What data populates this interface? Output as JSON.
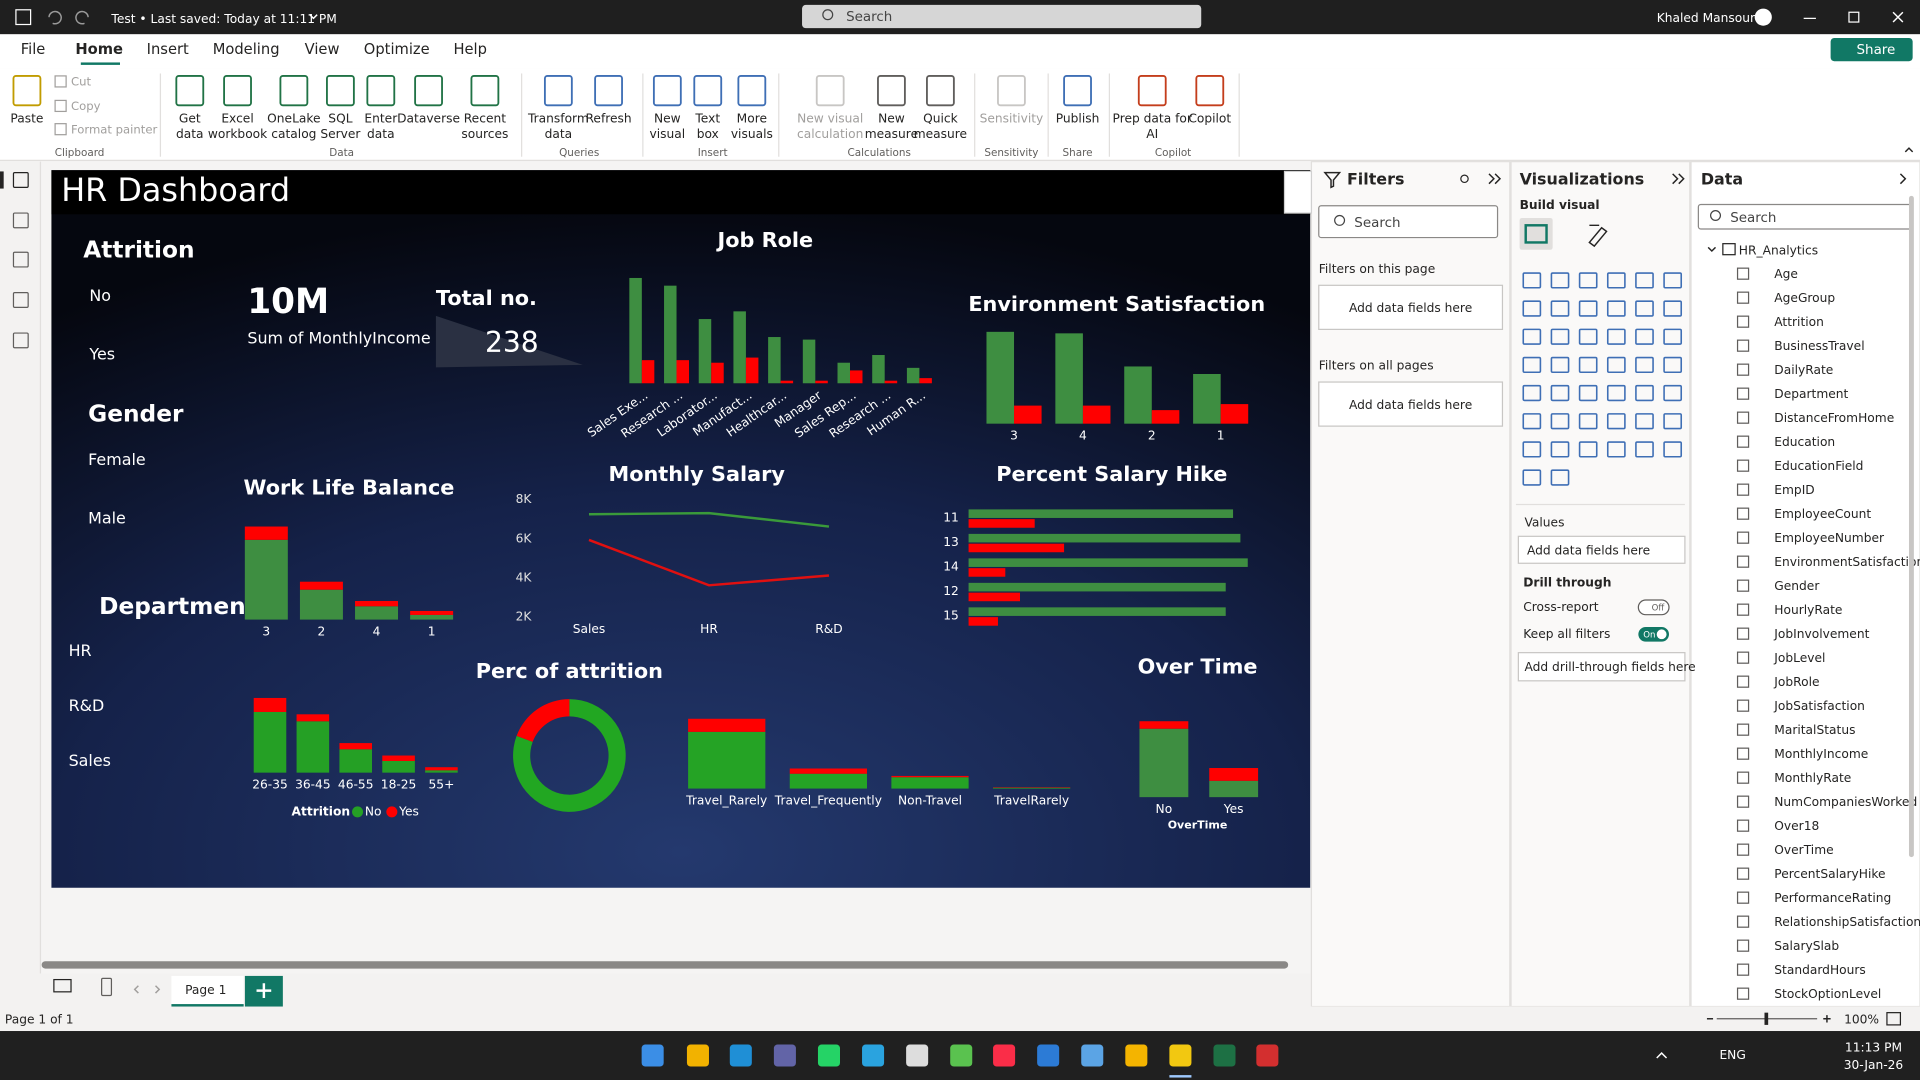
{
  "title_bar": {
    "file_title": "Test • Last saved: Today at 11:11 PM",
    "search": "Search",
    "user": "Khaled Mansour"
  },
  "menu": {
    "tabs": [
      "File",
      "Home",
      "Insert",
      "Modeling",
      "View",
      "Optimize",
      "Help"
    ],
    "share": "Share"
  },
  "ribbon": {
    "groups": [
      {
        "label": "Clipboard",
        "buttons": [
          {
            "lines": [
              "Paste"
            ]
          },
          {
            "lines": [
              "Cut"
            ]
          },
          {
            "lines": [
              "Copy"
            ]
          },
          {
            "lines": [
              "Format painter"
            ]
          }
        ]
      },
      {
        "label": "Data",
        "buttons": [
          {
            "lines": [
              "Get",
              "data"
            ]
          },
          {
            "lines": [
              "Excel",
              "workbook"
            ]
          },
          {
            "lines": [
              "OneLake",
              "catalog"
            ]
          },
          {
            "lines": [
              "SQL",
              "Server"
            ]
          },
          {
            "lines": [
              "Enter",
              "data"
            ]
          },
          {
            "lines": [
              "Dataverse"
            ]
          },
          {
            "lines": [
              "Recent",
              "sources"
            ]
          }
        ]
      },
      {
        "label": "Queries",
        "buttons": [
          {
            "lines": [
              "Transform",
              "data"
            ]
          },
          {
            "lines": [
              "Refresh"
            ]
          }
        ]
      },
      {
        "label": "Insert",
        "buttons": [
          {
            "lines": [
              "New",
              "visual"
            ]
          },
          {
            "lines": [
              "Text",
              "box"
            ]
          },
          {
            "lines": [
              "More",
              "visuals"
            ]
          }
        ]
      },
      {
        "label": "Calculations",
        "buttons": [
          {
            "lines": [
              "New visual",
              "calculation"
            ]
          },
          {
            "lines": [
              "New",
              "measure"
            ]
          },
          {
            "lines": [
              "Quick",
              "measure"
            ]
          }
        ]
      },
      {
        "label": "Sensitivity",
        "buttons": [
          {
            "lines": [
              "Sensitivity"
            ]
          }
        ]
      },
      {
        "label": "Share",
        "buttons": [
          {
            "lines": [
              "Publish"
            ]
          }
        ]
      },
      {
        "label": "Copilot",
        "buttons": [
          {
            "lines": [
              "Prep data for",
              "AI"
            ]
          },
          {
            "lines": [
              "Copilot"
            ]
          }
        ]
      }
    ]
  },
  "canvas": {
    "title": "HR Dashboard",
    "slicers": [
      {
        "title": "Attrition",
        "items": [
          "No",
          "Yes"
        ]
      },
      {
        "title": "Gender",
        "items": [
          "Female",
          "Male"
        ]
      },
      {
        "title": "Department",
        "items": [
          "HR",
          "R&D",
          "Sales"
        ]
      }
    ],
    "cards": [
      {
        "value": "10M",
        "label": "Sum of MonthlyIncome"
      },
      {
        "label": "Total no.",
        "value": "238"
      }
    ],
    "charts": [
      {
        "type": "bar",
        "title": "Job Role",
        "categories": [
          "Sales Exe...",
          "Research ...",
          "Laborator...",
          "Manufact...",
          "Healthcar...",
          "Manager",
          "Sales Rep...",
          "Research ...",
          "Human R..."
        ],
        "series": [
          {
            "color": "#3e8e41",
            "values": [
              41,
              38,
              25,
              28,
              18,
              17,
              8,
              11,
              6
            ]
          },
          {
            "color": "#ff0000",
            "values": [
              9,
              9,
              8,
              10,
              1,
              1,
              5,
              1,
              2
            ]
          }
        ]
      },
      {
        "type": "bar",
        "title": "Environment Satisfaction",
        "categories": [
          "3",
          "4",
          "2",
          "1"
        ],
        "series": [
          {
            "color": "#3e8e41",
            "values": [
              61,
              60,
              38,
              33
            ]
          },
          {
            "color": "#ff0000",
            "values": [
              12,
              12,
              9,
              13
            ]
          }
        ]
      },
      {
        "type": "stacked_bar",
        "title": "Work Life Balance",
        "categories": [
          "3",
          "2",
          "4",
          "1"
        ],
        "series": [
          {
            "color": "#3e8e41",
            "values": [
              120,
              45,
              20,
              7
            ]
          },
          {
            "color": "#ff0000",
            "values": [
              20,
              12,
              8,
              6
            ]
          }
        ]
      },
      {
        "type": "line",
        "title": "Monthly Salary",
        "categories": [
          "Sales",
          "HR",
          "R&D"
        ],
        "series": [
          {
            "color": "#3a9a3a",
            "values": [
              7250,
              7310,
              6625
            ]
          },
          {
            "color": "#e01010",
            "values": [
              5940,
              3625,
              4125
            ]
          }
        ],
        "ylim": [
          2000,
          8000
        ],
        "yticks": [
          {
            "value": 2000,
            "label": "2K"
          },
          {
            "value": 4000,
            "label": "4K"
          },
          {
            "value": 6000,
            "label": "6K"
          },
          {
            "value": 8000,
            "label": "8K"
          }
        ]
      },
      {
        "type": "hbar",
        "title": "Percent Salary Hike",
        "categories": [
          "11",
          "13",
          "14",
          "12",
          "15"
        ],
        "series": [
          {
            "color": "#3e8e41",
            "values": [
              36,
              37,
              38,
              35,
              35
            ]
          },
          {
            "color": "#ff0000",
            "values": [
              9,
              13,
              5,
              7,
              4
            ]
          }
        ]
      },
      {
        "type": "stacked_bar",
        "categories": [
          "26-35",
          "36-45",
          "46-55",
          "18-25",
          "55+"
        ],
        "legend_title": "Attrition",
        "series": [
          {
            "name": "No",
            "color": "#25a025",
            "values": [
              78,
              66,
              30,
              15,
              3
            ]
          },
          {
            "name": "Yes",
            "color": "#ff0000",
            "values": [
              18,
              9,
              8,
              7,
              4
            ]
          }
        ]
      },
      {
        "type": "donut",
        "title": "Perc of attrition",
        "values": [
          192,
          46
        ],
        "colors": [
          "#22a722",
          "#ff0000"
        ]
      },
      {
        "type": "stacked_bar",
        "categories": [
          "Travel_Rarely",
          "Travel_Frequently",
          "Non-Travel",
          "TravelRarely"
        ],
        "series": [
          {
            "color": "#25a325",
            "values": [
              130,
              34,
              26,
              2
            ]
          },
          {
            "color": "#ff0000",
            "values": [
              30,
              12,
              3,
              1
            ]
          }
        ]
      },
      {
        "type": "stacked_bar",
        "title": "Over Time",
        "categories": [
          "No",
          "Yes"
        ],
        "xlabel": "OverTime",
        "series": [
          {
            "color": "#3e8e41",
            "values": [
              155,
              37
            ]
          },
          {
            "color": "#ff0000",
            "values": [
              17,
              29
            ]
          }
        ]
      }
    ]
  },
  "filters_pane": {
    "title": "Filters",
    "search": "Search",
    "this_page": "Filters on this page",
    "this_page_drop": "Add data fields here",
    "all_pages": "Filters on all pages",
    "all_pages_drop": "Add data fields here"
  },
  "visualizations_pane": {
    "title": "Visualizations",
    "build_visual": "Build visual",
    "values": "Values",
    "values_drop": "Add data fields here",
    "drill_through": "Drill through",
    "cross_report": "Cross-report",
    "cross_report_state": "Off",
    "keep_filters": "Keep all filters",
    "keep_filters_state": "On",
    "drill_drop": "Add drill-through fields here"
  },
  "data_pane": {
    "title": "Data",
    "search": "Search",
    "table": "HR_Analytics",
    "fields": [
      "Age",
      "AgeGroup",
      "Attrition",
      "BusinessTravel",
      "DailyRate",
      "Department",
      "DistanceFromHome",
      "Education",
      "EducationField",
      "EmpID",
      "EmployeeCount",
      "EmployeeNumber",
      "EnvironmentSatisfaction",
      "Gender",
      "HourlyRate",
      "JobInvolvement",
      "JobLevel",
      "JobRole",
      "JobSatisfaction",
      "MaritalStatus",
      "MonthlyIncome",
      "MonthlyRate",
      "NumCompaniesWorked",
      "Over18",
      "OverTime",
      "PercentSalaryHike",
      "PerformanceRating",
      "RelationshipSatisfaction",
      "SalarySlab",
      "StandardHours",
      "StockOptionLevel"
    ]
  },
  "pages": {
    "tabs": [
      "Page 1"
    ],
    "status": "Page 1 of 1",
    "zoom": "100%"
  },
  "taskbar": {
    "language": "ENG",
    "time": "11:13 PM",
    "date": "30-Jan-26"
  }
}
